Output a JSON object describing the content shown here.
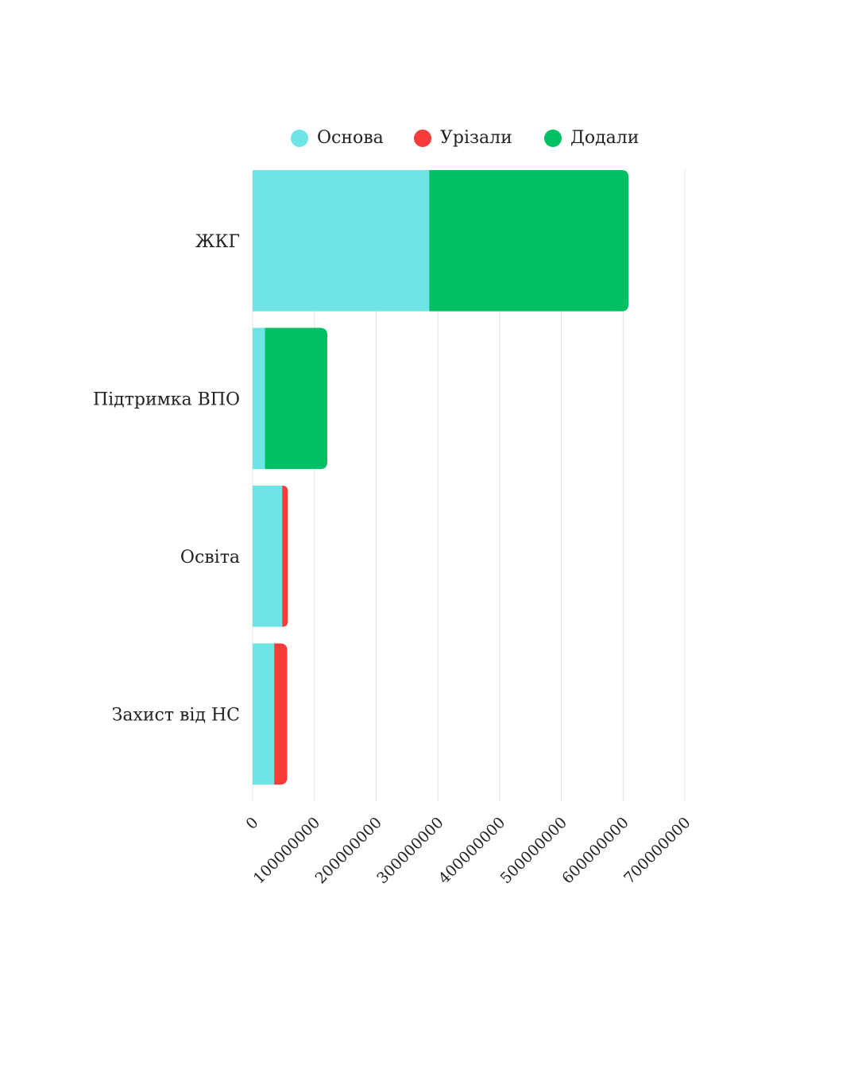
{
  "chart_data": {
    "type": "bar",
    "orientation": "horizontal",
    "stacked": true,
    "title": "",
    "xlabel": "",
    "ylabel": "",
    "categories": [
      "ЖКГ",
      "Підтримка ВПО",
      "Освіта",
      "Захист від НС"
    ],
    "series": [
      {
        "name": "Основа",
        "color": "#6de4e6",
        "values": [
          286000000,
          20000000,
          48000000,
          35000000
        ]
      },
      {
        "name": "Урізали",
        "color": "#f63b39",
        "values": [
          0,
          0,
          9000000,
          21000000
        ]
      },
      {
        "name": "Додали",
        "color": "#01bf63",
        "values": [
          323000000,
          101000000,
          0,
          0
        ]
      }
    ],
    "xlim": [
      0,
      700000000
    ],
    "xticks": [
      "0",
      "100000000",
      "200000000",
      "300000000",
      "400000000",
      "500000000",
      "600000000",
      "700000000"
    ],
    "grid": true,
    "legend_position": "top-center"
  }
}
